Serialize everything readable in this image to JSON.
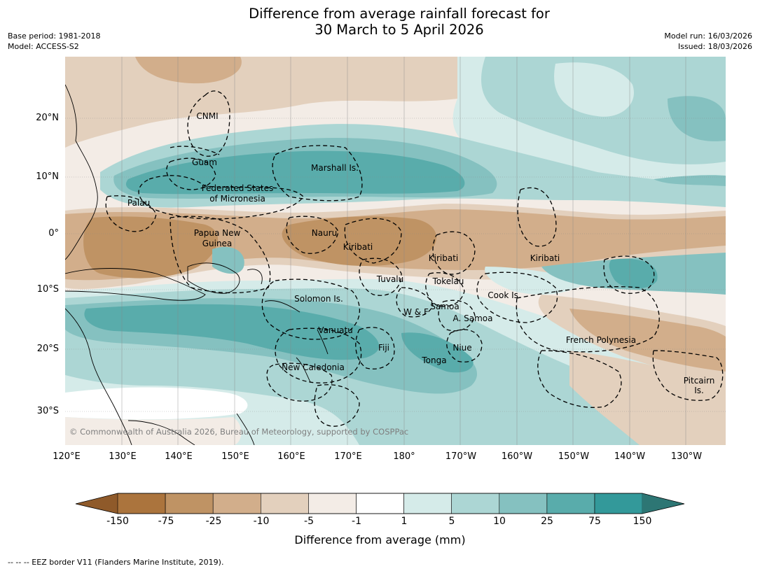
{
  "title": {
    "line1": "Difference from average rainfall forecast for",
    "line2": "30 March to 5 April 2026"
  },
  "meta": {
    "base_period": "Base period: 1981-2018",
    "model": "Model: ACCESS-S2",
    "model_run": "Model run: 16/03/2026",
    "issued": "Issued: 18/03/2026"
  },
  "axes": {
    "lat_labels": [
      "20°N",
      "10°N",
      "0°",
      "10°S",
      "20°S",
      "30°S"
    ],
    "lon_labels": [
      "120°E",
      "130°E",
      "140°E",
      "150°E",
      "160°E",
      "170°E",
      "180°",
      "170°W",
      "160°W",
      "150°W",
      "140°W",
      "130°W"
    ]
  },
  "regions": [
    {
      "id": "cnmi",
      "name": "CNMI"
    },
    {
      "id": "guam",
      "name": "Guam"
    },
    {
      "id": "marshall",
      "name": "Marshall Is."
    },
    {
      "id": "fsm1",
      "name": "Federated States"
    },
    {
      "id": "fsm2",
      "name": "of Micronesia"
    },
    {
      "id": "palau",
      "name": "Palau"
    },
    {
      "id": "png1",
      "name": "Papua New"
    },
    {
      "id": "png2",
      "name": "Guinea"
    },
    {
      "id": "nauru",
      "name": "Nauru"
    },
    {
      "id": "kiribati-w",
      "name": "Kiribati"
    },
    {
      "id": "kiribati-c",
      "name": "Kiribati"
    },
    {
      "id": "kiribati-e",
      "name": "Kiribati"
    },
    {
      "id": "tuvalu",
      "name": "Tuvalu"
    },
    {
      "id": "tokelau",
      "name": "Tokelau"
    },
    {
      "id": "cook",
      "name": "Cook Is."
    },
    {
      "id": "solomon",
      "name": "Solomon Is."
    },
    {
      "id": "wf",
      "name": "W & F"
    },
    {
      "id": "samoa",
      "name": "Samoa"
    },
    {
      "id": "asamoa",
      "name": "A. Samoa"
    },
    {
      "id": "vanuatu",
      "name": "Vanuatu"
    },
    {
      "id": "fiji",
      "name": "Fiji"
    },
    {
      "id": "niue",
      "name": "Niue"
    },
    {
      "id": "tonga",
      "name": "Tonga"
    },
    {
      "id": "frpoly",
      "name": "French Polynesia"
    },
    {
      "id": "newcal",
      "name": "New Caledonia"
    },
    {
      "id": "pitcairn1",
      "name": "Pitcairn"
    },
    {
      "id": "pitcairn2",
      "name": "Is."
    }
  ],
  "copyright": "© Commonwealth of Australia 2026, Bureau of Meteorology, supported by COSPPac",
  "colorbar": {
    "title": "Difference from average (mm)",
    "boundaries": [
      "-150",
      "-75",
      "-25",
      "-10",
      "-5",
      "-1",
      "1",
      "5",
      "10",
      "25",
      "75",
      "150"
    ],
    "under_color": "#8f5a2a",
    "over_color": "#2d7674",
    "colors": [
      "#ab743d",
      "#bf9364",
      "#d2ae8b",
      "#e3d0bd",
      "#f3ece6",
      "#ffffff",
      "#d5ebe9",
      "#acd6d4",
      "#85c1c0",
      "#59acab",
      "#33999a"
    ]
  },
  "footnote": "--  --  -- EEZ border V11 (Flanders Marine Institute, 2019)."
}
